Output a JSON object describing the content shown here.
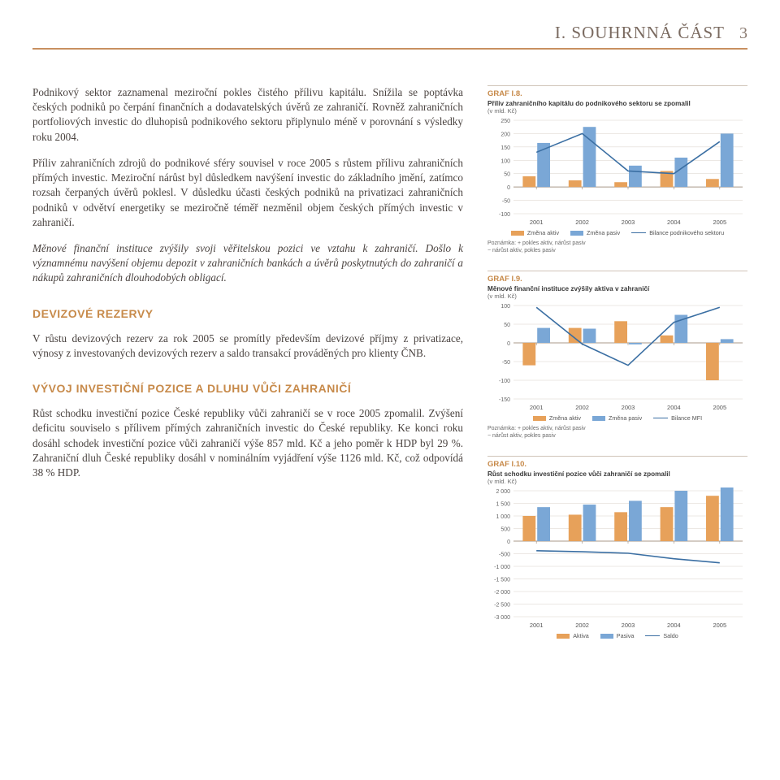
{
  "header": {
    "title": "I. SOUHRNNÁ ČÁST",
    "page": "3"
  },
  "colors": {
    "accent": "#c78a4a",
    "rule": "#c89060",
    "bar_aktiv": "#e7a15a",
    "bar_pasiv": "#7aa7d6",
    "line_saldo": "#3b6fa3",
    "grid": "#d8d0c8",
    "axis": "#a89888"
  },
  "left": {
    "p1": "Podnikový sektor zaznamenal meziroční pokles čistého přílivu kapitálu. Snížila se poptávka českých podniků po čerpání finančních a dodavatelských úvěrů ze zahraničí. Rovněž zahraničních portfoliových investic do dluhopisů podnikového sektoru připlynulo méně v porovnání s výsledky roku 2004.",
    "p2": "Příliv zahraničních zdrojů do podnikové sféry souvisel v roce 2005 s růstem přílivu zahraničních přímých investic. Meziroční nárůst byl důsledkem navýšení investic do základního jmění, zatímco rozsah čerpaných úvěrů poklesl. V důsledku účasti českých podniků na privatizaci zahraničních podniků v odvětví energetiky se meziročně téměř nezměnil objem českých přímých investic v zahraničí.",
    "p3": "Měnové finanční instituce zvýšily svoji věřitelskou pozici ve vztahu k zahraničí. Došlo k významnému navýšení objemu depozit v zahraničních bankách a úvěrů poskytnutých do zahraničí a nákupů zahraničních dlouhodobých obligací.",
    "h1": "DEVIZOVÉ REZERVY",
    "p4": "V růstu devizových rezerv za rok 2005 se promítly především devizové příjmy z privatizace, výnosy z investovaných devizových rezerv a saldo transakcí prováděných pro klienty ČNB.",
    "h2": "VÝVOJ INVESTIČNÍ POZICE A DLUHU VŮČI ZAHRANIČÍ",
    "p5": "Růst schodku investiční pozice České republiky vůči zahraničí se v roce 2005 zpomalil. Zvýšení deficitu souviselo s přílivem přímých zahraničních investic do České republiky. Ke konci roku dosáhl schodek investiční pozice vůči zahraničí výše 857 mld. Kč a jeho poměr k HDP byl 29 %. Zahraniční dluh České republiky dosáhl v nominálním vyjádření výše 1126 mld. Kč, což odpovídá 38 % HDP."
  },
  "chart8": {
    "label": "GRAF I.8.",
    "title": "Příliv zahraničního kapitálu do podnikového sektoru se zpomalil",
    "sub": "(v mld. Kč)",
    "categories": [
      "2001",
      "2002",
      "2003",
      "2004",
      "2005"
    ],
    "ylim": [
      -100,
      250
    ],
    "ystep": 50,
    "series": {
      "aktiv": [
        40,
        25,
        18,
        60,
        30
      ],
      "pasiv": [
        165,
        225,
        80,
        110,
        200
      ],
      "saldo": [
        130,
        200,
        60,
        50,
        170
      ]
    },
    "legend": {
      "a": "Změna aktiv",
      "b": "Změna pasiv",
      "c": "Bilance podnikového sektoru"
    },
    "note1": "Poznámka: + pokles aktiv, nárůst pasiv",
    "note2": "                 − nárůst aktiv, pokles pasiv"
  },
  "chart9": {
    "label": "GRAF I.9.",
    "title": "Měnové finanční instituce zvýšily aktiva v zahraničí",
    "sub": "(v mld. Kč)",
    "categories": [
      "2001",
      "2002",
      "2003",
      "2004",
      "2005"
    ],
    "ylim": [
      -150,
      100
    ],
    "ystep": 50,
    "series": {
      "aktiv": [
        -60,
        40,
        58,
        20,
        -100
      ],
      "pasiv": [
        40,
        38,
        -4,
        75,
        10
      ],
      "saldo": [
        95,
        -3,
        -60,
        55,
        95
      ]
    },
    "legend": {
      "a": "Změna aktiv",
      "b": "Změna pasiv",
      "c": "Bilance MFI"
    },
    "note1": "Poznámka: + pokles aktiv, nárůst pasiv",
    "note2": "                 − nárůst aktiv, pokles pasiv"
  },
  "chart10": {
    "label": "GRAF I.10.",
    "title": "Růst schodku investiční pozice vůči zahraničí se zpomalil",
    "sub": "(v mld. Kč)",
    "categories": [
      "2001",
      "2002",
      "2003",
      "2004",
      "2005"
    ],
    "ylim": [
      -3000,
      2000
    ],
    "ystep": 500,
    "series": {
      "aktiv": [
        1000,
        1050,
        1150,
        1350,
        1800
      ],
      "pasiv": [
        1350,
        1450,
        1600,
        2000,
        2650
      ],
      "saldo": [
        -380,
        -420,
        -480,
        -700,
        -860
      ]
    },
    "legend": {
      "a": "Aktiva",
      "b": "Pasiva",
      "c": "Saldo"
    }
  }
}
